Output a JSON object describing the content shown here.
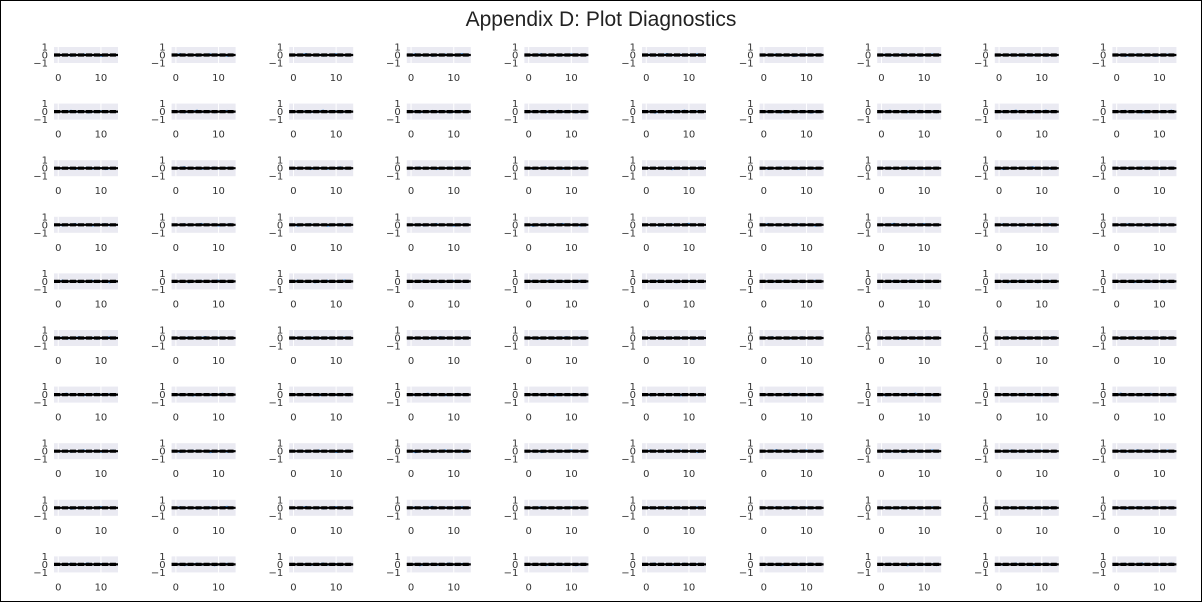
{
  "title": "Appendix D: Plot Diagnostics",
  "chart_data": {
    "type": "line",
    "layout": {
      "rows": 10,
      "cols": 10
    },
    "panel_description": "small-multiple correlogram panels, each with a zero line and dashed confidence bounds",
    "xlim": [
      -1,
      14
    ],
    "ylim": [
      -1,
      1
    ],
    "x_ticks": [
      0,
      10
    ],
    "y_ticks": [
      1,
      0,
      -1
    ],
    "x_tick_labels": [
      "0",
      "10"
    ],
    "y_tick_labels": [
      "1",
      "0",
      "−1"
    ],
    "lags": [
      0,
      1,
      2,
      3,
      4,
      5,
      6,
      7,
      8,
      9,
      10,
      11,
      12,
      13
    ],
    "confidence_bound": 0.12,
    "grid": true,
    "colors": {
      "series": "#4c8fd4",
      "bounds": "#000000",
      "zero": "#000000",
      "panel_bg": "#eaeaf2",
      "grid": "#ffffff"
    }
  }
}
